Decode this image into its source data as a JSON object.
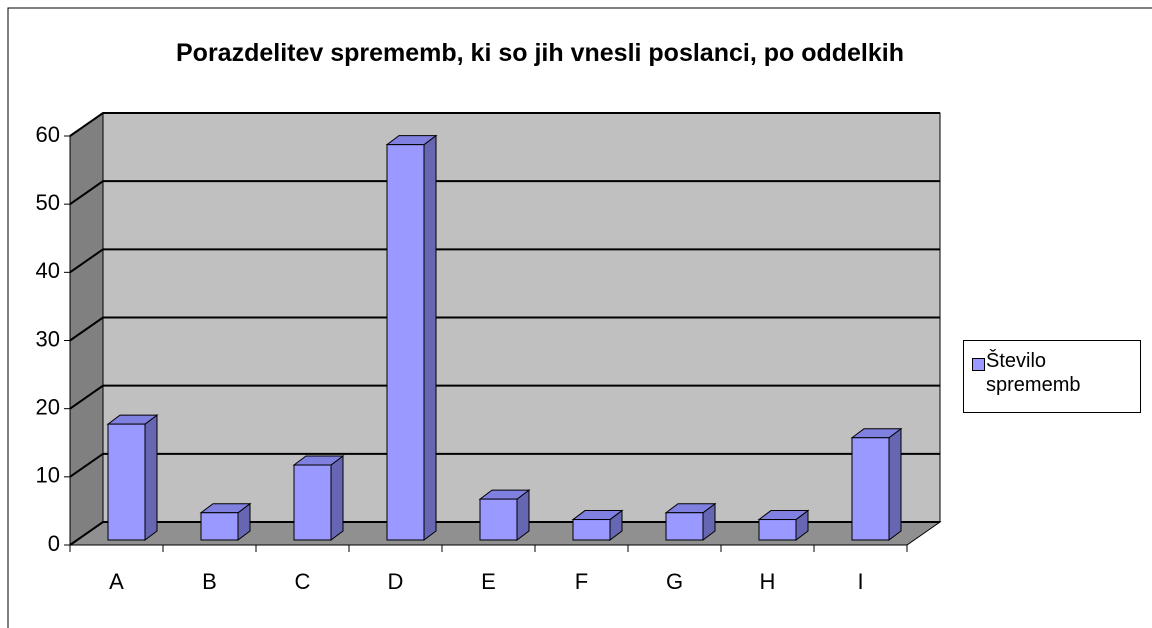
{
  "chart_data": {
    "type": "bar3d",
    "title": "Porazdelitev sprememb, ki so jih vnesli poslanci, po oddelkih",
    "categories": [
      "A",
      "B",
      "C",
      "D",
      "E",
      "F",
      "G",
      "H",
      "I"
    ],
    "series": [
      {
        "name": "Število sprememb",
        "color": "#9999ff",
        "values": [
          17,
          4,
          11,
          58,
          6,
          3,
          4,
          3,
          15
        ]
      }
    ],
    "ylim": [
      0,
      60
    ],
    "yticks": [
      0,
      10,
      20,
      30,
      40,
      50,
      60
    ],
    "grid": true,
    "legend": "right"
  }
}
